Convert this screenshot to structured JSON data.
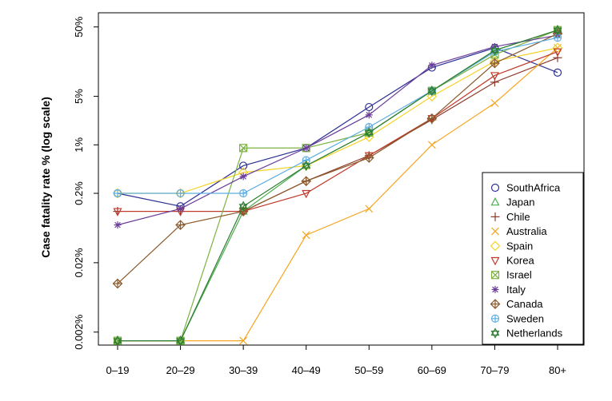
{
  "chart_data": {
    "type": "line",
    "ylabel": "Case fatality rate % (log scale)",
    "xlabel": "",
    "y_scale": "log",
    "ylim": [
      0.0013,
      80
    ],
    "categories": [
      "0–19",
      "20–29",
      "30–39",
      "40–49",
      "50–59",
      "60–69",
      "70–79",
      "80+"
    ],
    "y_ticks": [
      {
        "value": 50,
        "label": "50%"
      },
      {
        "value": 5,
        "label": "5%"
      },
      {
        "value": 1,
        "label": "1%"
      },
      {
        "value": 0.2,
        "label": "0.2%"
      },
      {
        "value": 0.02,
        "label": "0.02%"
      },
      {
        "value": 0.002,
        "label": "0.002%"
      }
    ],
    "legend_position": "bottom-right",
    "series": [
      {
        "name": "SouthAfrica",
        "color": "#2e3192",
        "marker": "circle",
        "values": [
          0.2,
          0.13,
          0.5,
          0.9,
          3.5,
          13,
          25,
          11
        ]
      },
      {
        "name": "Japan",
        "color": "#4caf50",
        "marker": "triangle",
        "values": [
          0.0015,
          0.0015,
          0.11,
          0.5,
          1.5,
          6,
          23,
          45
        ]
      },
      {
        "name": "Chile",
        "color": "#8b3a2b",
        "marker": "plus",
        "values": [
          0.11,
          0.11,
          0.11,
          0.3,
          0.7,
          2.3,
          8,
          18
        ]
      },
      {
        "name": "Australia",
        "color": "#f5a623",
        "marker": "x",
        "values": [
          0.0015,
          0.0015,
          0.0015,
          0.05,
          0.12,
          1,
          4,
          25
        ]
      },
      {
        "name": "Spain",
        "color": "#f5d327",
        "marker": "diamond",
        "values": [
          0.2,
          0.2,
          0.4,
          0.5,
          1.3,
          5,
          16,
          25
        ]
      },
      {
        "name": "Korea",
        "color": "#c0392b",
        "marker": "tri-down",
        "values": [
          0.11,
          0.11,
          0.11,
          0.2,
          0.7,
          2.4,
          10,
          22
        ]
      },
      {
        "name": "Israel",
        "color": "#7cb342",
        "marker": "square-x",
        "values": [
          0.0015,
          0.0015,
          0.9,
          0.9,
          1.5,
          6,
          20,
          45
        ]
      },
      {
        "name": "Italy",
        "color": "#6a3d9a",
        "marker": "star",
        "values": [
          0.07,
          0.12,
          0.35,
          0.9,
          2.7,
          14,
          26,
          38
        ]
      },
      {
        "name": "Canada",
        "color": "#8b5a2b",
        "marker": "diamond-plus",
        "values": [
          0.01,
          0.07,
          0.11,
          0.3,
          0.65,
          2.4,
          15,
          40
        ]
      },
      {
        "name": "Sweden",
        "color": "#5dade2",
        "marker": "circle-plus",
        "values": [
          0.2,
          0.2,
          0.2,
          0.6,
          1.8,
          6,
          22,
          35
        ]
      },
      {
        "name": "Netherlands",
        "color": "#2e7d32",
        "marker": "hexagram",
        "values": [
          0.0015,
          0.0015,
          0.13,
          0.5,
          1.5,
          6,
          23,
          45
        ]
      }
    ]
  }
}
